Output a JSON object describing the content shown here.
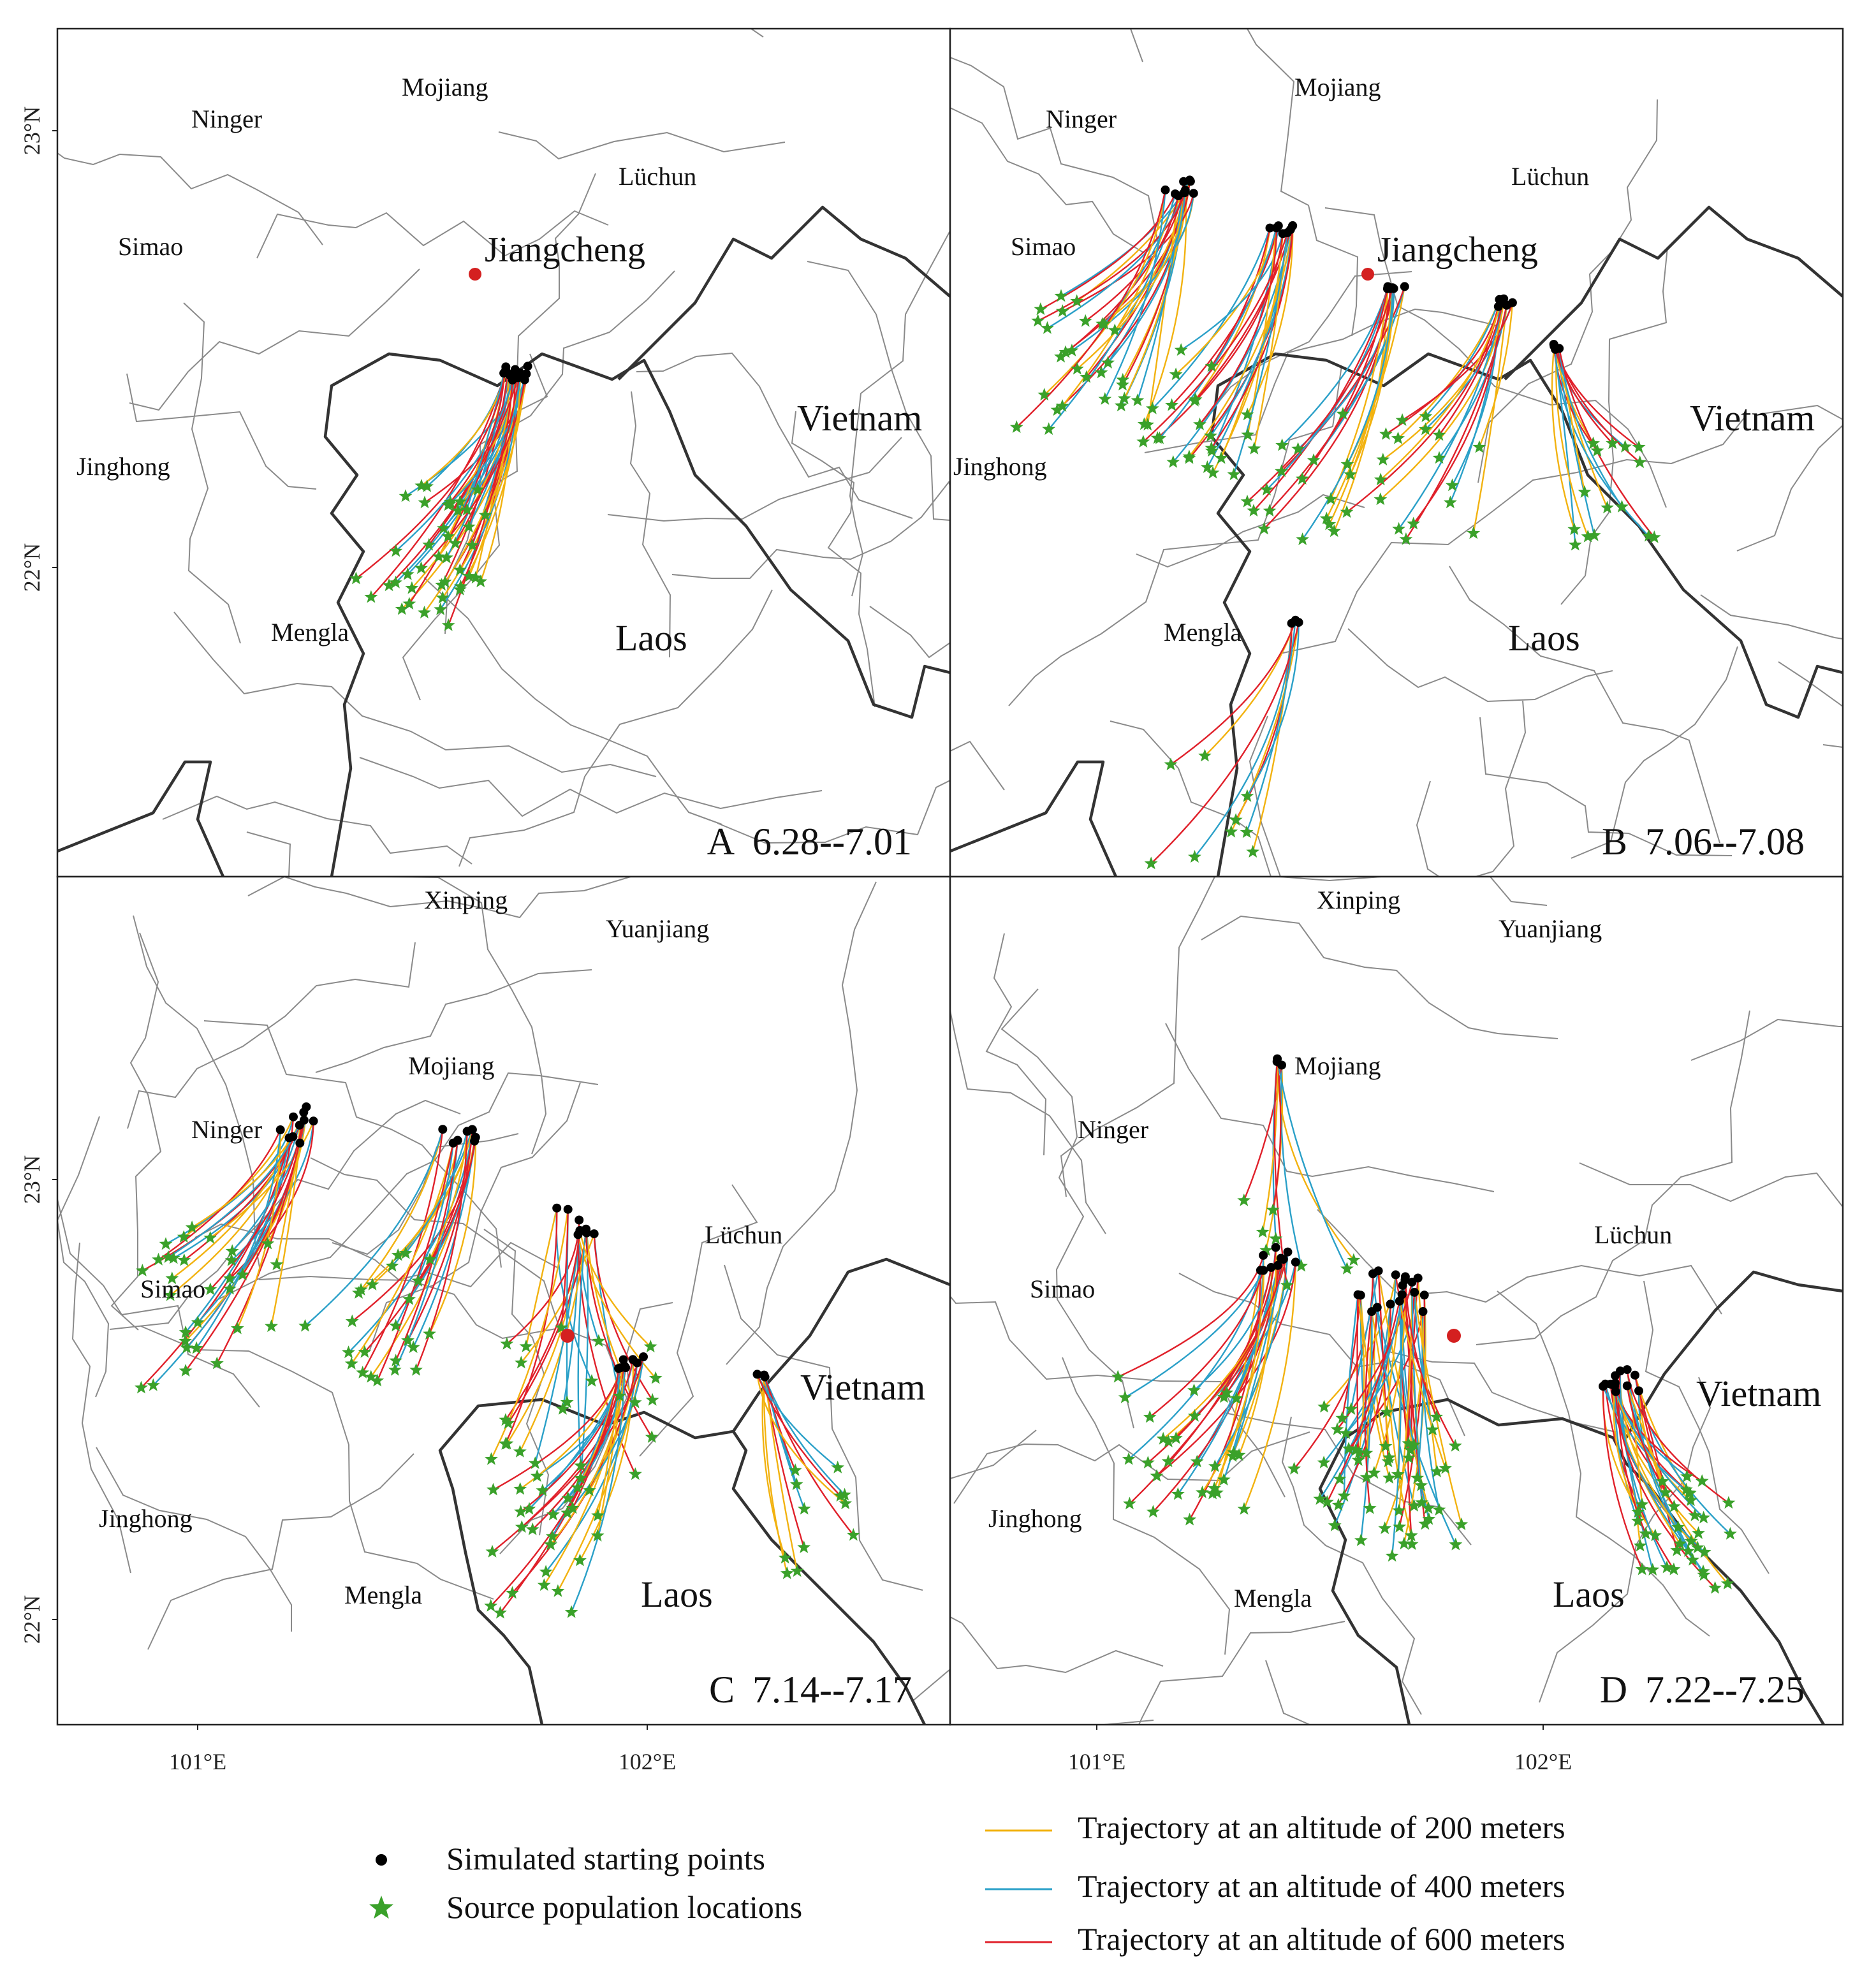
{
  "panels": [
    {
      "id": "A",
      "label": "A",
      "dates": "6.28--7.01",
      "places": [
        {
          "name": "Ninger",
          "kind": "county"
        },
        {
          "name": "Mojiang",
          "kind": "county"
        },
        {
          "name": "Lüchun",
          "kind": "county"
        },
        {
          "name": "Simao",
          "kind": "county"
        },
        {
          "name": "Jiangcheng",
          "kind": "focus"
        },
        {
          "name": "Vietnam",
          "kind": "country"
        },
        {
          "name": "Jinghong",
          "kind": "county"
        },
        {
          "name": "Mengla",
          "kind": "county"
        },
        {
          "name": "Laos",
          "kind": "country"
        }
      ],
      "lat_ticks": [
        "23°N",
        "22°N"
      ]
    },
    {
      "id": "B",
      "label": "B",
      "dates": "7.06--7.08",
      "places": [
        {
          "name": "Ninger",
          "kind": "county"
        },
        {
          "name": "Mojiang",
          "kind": "county"
        },
        {
          "name": "Lüchun",
          "kind": "county"
        },
        {
          "name": "Simao",
          "kind": "county"
        },
        {
          "name": "Jiangcheng",
          "kind": "focus"
        },
        {
          "name": "Vietnam",
          "kind": "country"
        },
        {
          "name": "Jinghong",
          "kind": "county"
        },
        {
          "name": "Mengla",
          "kind": "county"
        },
        {
          "name": "Laos",
          "kind": "country"
        }
      ],
      "lat_ticks": []
    },
    {
      "id": "C",
      "label": "C",
      "dates": "7.14--7.17",
      "places": [
        {
          "name": "Xinping",
          "kind": "county"
        },
        {
          "name": "Yuanjiang",
          "kind": "county"
        },
        {
          "name": "Mojiang",
          "kind": "county"
        },
        {
          "name": "Ninger",
          "kind": "county"
        },
        {
          "name": "Lüchun",
          "kind": "county"
        },
        {
          "name": "Simao",
          "kind": "county"
        },
        {
          "name": "Vietnam",
          "kind": "country"
        },
        {
          "name": "Jinghong",
          "kind": "county"
        },
        {
          "name": "Mengla",
          "kind": "county"
        },
        {
          "name": "Laos",
          "kind": "country"
        }
      ],
      "lat_ticks": [
        "23°N",
        "22°N"
      ],
      "lon_ticks": [
        "101°E",
        "102°E"
      ]
    },
    {
      "id": "D",
      "label": "D",
      "dates": "7.22--7.25",
      "places": [
        {
          "name": "Xinping",
          "kind": "county"
        },
        {
          "name": "Yuanjiang",
          "kind": "county"
        },
        {
          "name": "Mojiang",
          "kind": "county"
        },
        {
          "name": "Ninger",
          "kind": "county"
        },
        {
          "name": "Lüchun",
          "kind": "county"
        },
        {
          "name": "Simao",
          "kind": "county"
        },
        {
          "name": "Vietnam",
          "kind": "country"
        },
        {
          "name": "Jinghong",
          "kind": "county"
        },
        {
          "name": "Mengla",
          "kind": "county"
        },
        {
          "name": "Laos",
          "kind": "country"
        }
      ],
      "lat_ticks": [],
      "lon_ticks": [
        "101°E",
        "102°E"
      ]
    }
  ],
  "legend": {
    "start_points": "Simulated starting points",
    "source_locations": "Source population locations",
    "traj_200": "Trajectory at an altitude of 200 meters",
    "traj_400": "Trajectory at an altitude of 400 meters",
    "traj_600": "Trajectory at an altitude of 600 meters"
  },
  "colors": {
    "traj_200": "#f2b20f",
    "traj_400": "#2aa0c8",
    "traj_600": "#e0202a",
    "start": "#000000",
    "source": "#3aa12a",
    "focus_site": "#d42020",
    "country_border": "#333333",
    "county_border": "#8a8a8a"
  }
}
